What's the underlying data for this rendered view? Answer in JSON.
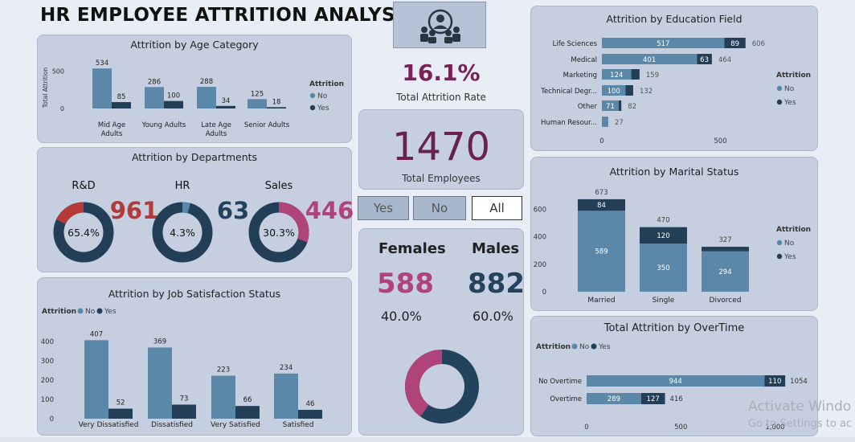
{
  "header": {
    "title": "HR EMPLOYEE ATTRITION ANALYSIS",
    "logo_icon": "team-users-icon"
  },
  "colors": {
    "no": "#5b87a9",
    "yes": "#233f57",
    "accent": "#7a2155",
    "female": "#b0437a",
    "hr_dark": "#23435c",
    "rd_red": "#b43a3a",
    "sales_pink": "#b0437a"
  },
  "kpis": {
    "attrition_rate": {
      "value": "16.1%",
      "label": "Total Attrition Rate"
    },
    "total_employees": {
      "value": "1470",
      "label": "Total Employees"
    }
  },
  "slicer": {
    "options": [
      "Yes",
      "No",
      "All"
    ],
    "selected": "All"
  },
  "gender": {
    "female": {
      "label": "Females",
      "count": "588",
      "pct": "40.0%"
    },
    "male": {
      "label": "Males",
      "count": "882",
      "pct": "60.0%"
    },
    "female_share": 0.4
  },
  "legend": {
    "title": "Attrition",
    "no": "No",
    "yes": "Yes"
  },
  "chart_data": [
    {
      "id": "age",
      "type": "bar",
      "title": "Attrition by Age Category",
      "ylabel": "Total Attrition",
      "yticks": [
        0,
        500
      ],
      "ylim": [
        0,
        600
      ],
      "categories": [
        [
          "Mid Age",
          "Adults"
        ],
        [
          "Young Adults"
        ],
        [
          "Late Age",
          "Adults"
        ],
        [
          "Senior Adults"
        ]
      ],
      "series": [
        {
          "name": "No",
          "values": [
            534,
            286,
            288,
            125
          ]
        },
        {
          "name": "Yes",
          "values": [
            85,
            100,
            34,
            18
          ]
        }
      ]
    },
    {
      "id": "departments",
      "type": "pie",
      "title": "Attrition by Departments",
      "items": [
        {
          "name": "R&D",
          "count": "961",
          "pct_label": "65.4%",
          "share": 0.654
        },
        {
          "name": "HR",
          "count": "63",
          "pct_label": "4.3%",
          "share": 0.043
        },
        {
          "name": "Sales",
          "count": "446",
          "pct_label": "30.3%",
          "share": 0.303
        }
      ]
    },
    {
      "id": "jobsat",
      "type": "bar",
      "title": "Attrition by Job Satisfaction Status",
      "yticks": [
        0,
        100,
        200,
        300,
        400
      ],
      "ylim": [
        0,
        420
      ],
      "categories": [
        "Very Dissatisfied",
        "Dissatisfied",
        "Very Satisfied",
        "Satisfied"
      ],
      "series": [
        {
          "name": "No",
          "values": [
            407,
            369,
            223,
            234
          ]
        },
        {
          "name": "Yes",
          "values": [
            52,
            73,
            66,
            46
          ]
        }
      ]
    },
    {
      "id": "education",
      "type": "bar",
      "orientation": "horizontal-stacked",
      "title": "Attrition by Education Field",
      "xticks": [
        0,
        500
      ],
      "xlim": [
        0,
        700
      ],
      "categories": [
        "Life Sciences",
        "Medical",
        "Marketing",
        "Technical Degr...",
        "Other",
        "Human Resour..."
      ],
      "series": [
        {
          "name": "No",
          "values": [
            517,
            401,
            124,
            100,
            71,
            27
          ]
        },
        {
          "name": "Yes",
          "values": [
            89,
            63,
            35,
            32,
            11,
            0
          ]
        }
      ],
      "totals": [
        606,
        464,
        159,
        132,
        82,
        27
      ],
      "labels_no": [
        "517",
        "401",
        "124",
        "100",
        "71",
        ""
      ],
      "labels_yes": [
        "89",
        "63",
        "",
        "",
        "",
        ""
      ]
    },
    {
      "id": "marital",
      "type": "bar",
      "orientation": "vertical-stacked",
      "title": "Attrition by Marital Status",
      "yticks": [
        0,
        200,
        400,
        600
      ],
      "ylim": [
        0,
        700
      ],
      "categories": [
        "Married",
        "Single",
        "Divorced"
      ],
      "series": [
        {
          "name": "No",
          "values": [
            589,
            350,
            294
          ]
        },
        {
          "name": "Yes",
          "values": [
            84,
            120,
            33
          ]
        }
      ],
      "totals": [
        673,
        470,
        327
      ],
      "labels_no": [
        "589",
        "350",
        "294"
      ],
      "labels_yes": [
        "84",
        "120",
        ""
      ]
    },
    {
      "id": "overtime",
      "type": "bar",
      "orientation": "horizontal-stacked",
      "title": "Total Attrition by OverTime",
      "xticks": [
        "0",
        "500",
        "1,000"
      ],
      "xlim": [
        0,
        1150
      ],
      "categories": [
        "No Overtime",
        "Overtime"
      ],
      "series": [
        {
          "name": "No",
          "values": [
            944,
            289
          ]
        },
        {
          "name": "Yes",
          "values": [
            110,
            127
          ]
        }
      ],
      "totals": [
        1054,
        416
      ]
    }
  ],
  "watermark": {
    "line1": "Activate Windo",
    "line2": "Go to Settings to ac"
  }
}
